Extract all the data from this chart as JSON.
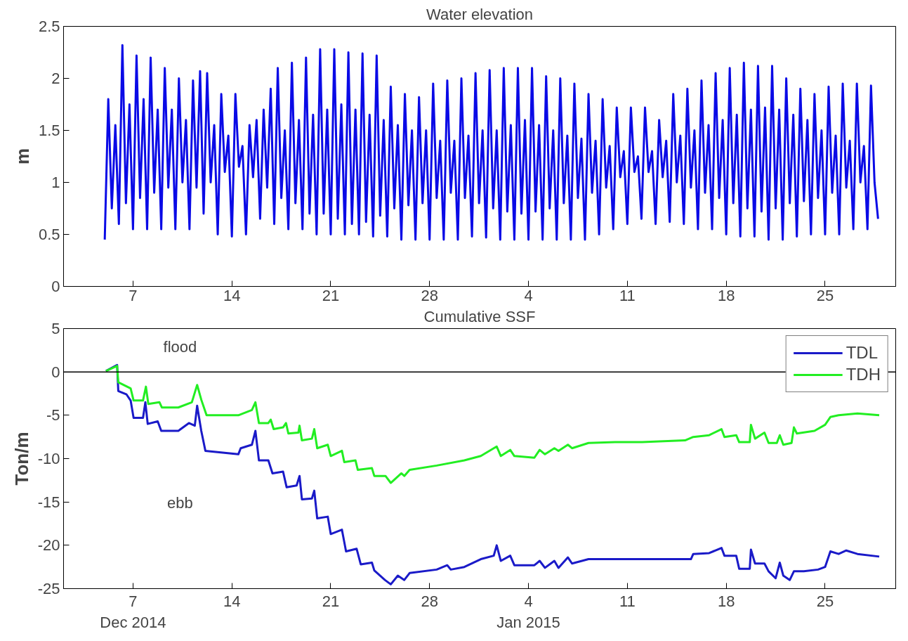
{
  "chart_data": [
    {
      "type": "line",
      "title": "Water elevation",
      "ylabel": "m",
      "xlim": [
        "2014-12-02T02:00",
        "2015-01-30T00:00"
      ],
      "ylim": [
        0,
        2.5
      ],
      "yticks": [
        0,
        0.5,
        1,
        1.5,
        2,
        2.5
      ],
      "xticks": [
        {
          "value": "2014-12-07",
          "label": "7"
        },
        {
          "value": "2014-12-14",
          "label": "14"
        },
        {
          "value": "2014-12-21",
          "label": "21"
        },
        {
          "value": "2014-12-28",
          "label": "28"
        },
        {
          "value": "2015-01-04",
          "label": "4"
        },
        {
          "value": "2015-01-11",
          "label": "11"
        },
        {
          "value": "2015-01-18",
          "label": "18"
        },
        {
          "value": "2015-01-25",
          "label": "25"
        }
      ],
      "grid": false,
      "line_style": "solid",
      "x": [
        "2014-12-05T00:00",
        "2014-12-05T06:00",
        "2014-12-05T12:00",
        "2014-12-05T18:00",
        "2014-12-06T00:00",
        "2014-12-06T06:00",
        "2014-12-06T12:00",
        "2014-12-06T18:00",
        "2014-12-07T00:00",
        "2014-12-07T06:00",
        "2014-12-07T12:00",
        "2014-12-07T18:00",
        "2014-12-08T00:00",
        "2014-12-08T06:00",
        "2014-12-08T12:00",
        "2014-12-08T18:00",
        "2014-12-09T00:00",
        "2014-12-09T06:00",
        "2014-12-09T12:00",
        "2014-12-09T18:00",
        "2014-12-10T00:00",
        "2014-12-10T06:00",
        "2014-12-10T12:00",
        "2014-12-10T18:00",
        "2014-12-11T00:00",
        "2014-12-11T06:00",
        "2014-12-11T12:00",
        "2014-12-11T18:00",
        "2014-12-12T00:00",
        "2014-12-12T06:00",
        "2014-12-12T12:00",
        "2014-12-12T18:00",
        "2014-12-13T00:00",
        "2014-12-13T06:00",
        "2014-12-13T12:00",
        "2014-12-13T18:00",
        "2014-12-14T00:00",
        "2014-12-14T06:00",
        "2014-12-14T12:00",
        "2014-12-14T18:00",
        "2014-12-15T00:00",
        "2014-12-15T06:00",
        "2014-12-15T12:00",
        "2014-12-15T18:00",
        "2014-12-16T00:00",
        "2014-12-16T06:00",
        "2014-12-16T12:00",
        "2014-12-16T18:00",
        "2014-12-17T00:00",
        "2014-12-17T06:00",
        "2014-12-17T12:00",
        "2014-12-17T18:00",
        "2014-12-18T00:00",
        "2014-12-18T06:00",
        "2014-12-18T12:00",
        "2014-12-18T18:00",
        "2014-12-19T00:00",
        "2014-12-19T06:00",
        "2014-12-19T12:00",
        "2014-12-19T18:00",
        "2014-12-20T00:00",
        "2014-12-20T06:00",
        "2014-12-20T12:00",
        "2014-12-20T18:00",
        "2014-12-21T00:00",
        "2014-12-21T06:00",
        "2014-12-21T12:00",
        "2014-12-21T18:00",
        "2014-12-22T00:00",
        "2014-12-22T06:00",
        "2014-12-22T12:00",
        "2014-12-22T18:00",
        "2014-12-23T00:00",
        "2014-12-23T06:00",
        "2014-12-23T12:00",
        "2014-12-23T18:00",
        "2014-12-24T00:00",
        "2014-12-24T06:00",
        "2014-12-24T12:00",
        "2014-12-24T18:00",
        "2014-12-25T00:00",
        "2014-12-25T06:00",
        "2014-12-25T12:00",
        "2014-12-25T18:00",
        "2014-12-26T00:00",
        "2014-12-26T06:00",
        "2014-12-26T12:00",
        "2014-12-26T18:00",
        "2014-12-27T00:00",
        "2014-12-27T06:00",
        "2014-12-27T12:00",
        "2014-12-27T18:00",
        "2014-12-28T00:00",
        "2014-12-28T06:00",
        "2014-12-28T12:00",
        "2014-12-28T18:00",
        "2014-12-29T00:00",
        "2014-12-29T06:00",
        "2014-12-29T12:00",
        "2014-12-29T18:00",
        "2014-12-30T00:00",
        "2014-12-30T06:00",
        "2014-12-30T12:00",
        "2014-12-30T18:00",
        "2014-12-31T00:00",
        "2014-12-31T06:00",
        "2014-12-31T12:00",
        "2014-12-31T18:00",
        "2015-01-01T00:00",
        "2015-01-01T06:00",
        "2015-01-01T12:00",
        "2015-01-01T18:00",
        "2015-01-02T00:00",
        "2015-01-02T06:00",
        "2015-01-02T12:00",
        "2015-01-02T18:00",
        "2015-01-03T00:00",
        "2015-01-03T06:00",
        "2015-01-03T12:00",
        "2015-01-03T18:00",
        "2015-01-04T00:00",
        "2015-01-04T06:00",
        "2015-01-04T12:00",
        "2015-01-04T18:00",
        "2015-01-05T00:00",
        "2015-01-05T06:00",
        "2015-01-05T12:00",
        "2015-01-05T18:00",
        "2015-01-06T00:00",
        "2015-01-06T06:00",
        "2015-01-06T12:00",
        "2015-01-06T18:00",
        "2015-01-07T00:00",
        "2015-01-07T06:00",
        "2015-01-07T12:00",
        "2015-01-07T18:00",
        "2015-01-08T00:00",
        "2015-01-08T06:00",
        "2015-01-08T12:00",
        "2015-01-08T18:00",
        "2015-01-09T00:00",
        "2015-01-09T06:00",
        "2015-01-09T12:00",
        "2015-01-09T18:00",
        "2015-01-10T00:00",
        "2015-01-10T06:00",
        "2015-01-10T12:00",
        "2015-01-10T18:00",
        "2015-01-11T00:00",
        "2015-01-11T06:00",
        "2015-01-11T12:00",
        "2015-01-11T18:00",
        "2015-01-12T00:00",
        "2015-01-12T06:00",
        "2015-01-12T12:00",
        "2015-01-12T18:00",
        "2015-01-13T00:00",
        "2015-01-13T06:00",
        "2015-01-13T12:00",
        "2015-01-13T18:00",
        "2015-01-14T00:00",
        "2015-01-14T06:00",
        "2015-01-14T12:00",
        "2015-01-14T18:00",
        "2015-01-15T00:00",
        "2015-01-15T06:00",
        "2015-01-15T12:00",
        "2015-01-15T18:00",
        "2015-01-16T00:00",
        "2015-01-16T06:00",
        "2015-01-16T12:00",
        "2015-01-16T18:00",
        "2015-01-17T00:00",
        "2015-01-17T06:00",
        "2015-01-17T12:00",
        "2015-01-17T18:00",
        "2015-01-18T00:00",
        "2015-01-18T06:00",
        "2015-01-18T12:00",
        "2015-01-18T18:00",
        "2015-01-19T00:00",
        "2015-01-19T06:00",
        "2015-01-19T12:00",
        "2015-01-19T18:00",
        "2015-01-20T00:00",
        "2015-01-20T06:00",
        "2015-01-20T12:00",
        "2015-01-20T18:00",
        "2015-01-21T00:00",
        "2015-01-21T06:00",
        "2015-01-21T12:00",
        "2015-01-21T18:00",
        "2015-01-22T00:00",
        "2015-01-22T06:00",
        "2015-01-22T12:00",
        "2015-01-22T18:00",
        "2015-01-23T00:00",
        "2015-01-23T06:00",
        "2015-01-23T12:00",
        "2015-01-23T18:00",
        "2015-01-24T00:00",
        "2015-01-24T06:00",
        "2015-01-24T12:00",
        "2015-01-24T18:00",
        "2015-01-25T00:00",
        "2015-01-25T06:00",
        "2015-01-25T12:00",
        "2015-01-25T18:00",
        "2015-01-26T00:00",
        "2015-01-26T06:00",
        "2015-01-26T12:00",
        "2015-01-26T18:00",
        "2015-01-27T00:00",
        "2015-01-27T06:00",
        "2015-01-27T12:00",
        "2015-01-27T18:00",
        "2015-01-28T00:00",
        "2015-01-28T06:00",
        "2015-01-28T12:00",
        "2015-01-28T18:00"
      ],
      "series": [
        {
          "color": "#0a0ae6",
          "values": [
            0.45,
            1.8,
            0.75,
            1.55,
            0.6,
            2.32,
            0.8,
            1.75,
            0.55,
            2.22,
            0.85,
            1.8,
            0.55,
            2.2,
            0.9,
            1.7,
            0.55,
            2.1,
            0.95,
            1.7,
            0.55,
            2.0,
            1.0,
            1.6,
            0.55,
            1.98,
            0.95,
            2.07,
            0.7,
            2.05,
            1.0,
            1.55,
            0.5,
            1.85,
            1.1,
            1.45,
            0.48,
            1.85,
            1.15,
            1.35,
            0.5,
            1.55,
            1.05,
            1.6,
            0.65,
            1.7,
            0.95,
            1.9,
            0.6,
            2.1,
            0.85,
            1.5,
            0.55,
            2.15,
            0.8,
            1.6,
            0.55,
            2.2,
            0.7,
            1.65,
            0.5,
            2.28,
            0.7,
            1.7,
            0.5,
            2.28,
            0.65,
            1.75,
            0.5,
            2.25,
            0.6,
            1.7,
            0.5,
            2.24,
            0.62,
            1.65,
            0.48,
            2.22,
            0.68,
            1.6,
            0.48,
            1.92,
            0.75,
            1.55,
            0.45,
            1.85,
            0.78,
            1.5,
            0.45,
            1.82,
            0.8,
            1.5,
            0.45,
            1.95,
            0.85,
            1.4,
            0.45,
            1.98,
            0.9,
            1.4,
            0.45,
            2.0,
            0.85,
            1.45,
            0.48,
            2.05,
            0.8,
            1.5,
            0.47,
            2.08,
            0.75,
            1.5,
            0.45,
            2.1,
            0.72,
            1.55,
            0.45,
            2.1,
            0.7,
            1.6,
            0.45,
            2.1,
            0.72,
            1.55,
            0.45,
            2.02,
            0.75,
            1.5,
            0.45,
            2.0,
            0.8,
            1.45,
            0.45,
            1.95,
            0.85,
            1.42,
            0.45,
            1.85,
            0.9,
            1.4,
            0.5,
            1.8,
            0.95,
            1.35,
            0.55,
            1.72,
            1.05,
            1.3,
            0.6,
            1.72,
            1.1,
            1.25,
            0.65,
            1.72,
            1.1,
            1.3,
            0.6,
            1.6,
            1.05,
            1.4,
            0.62,
            1.85,
            1.0,
            1.45,
            0.6,
            1.9,
            0.95,
            1.5,
            0.55,
            1.98,
            0.9,
            1.55,
            0.55,
            2.05,
            0.85,
            1.6,
            0.5,
            2.1,
            0.8,
            1.65,
            0.48,
            2.15,
            0.75,
            1.7,
            0.48,
            2.12,
            0.72,
            1.72,
            0.45,
            2.12,
            0.75,
            1.7,
            0.45,
            2.0,
            0.8,
            1.65,
            0.48,
            1.9,
            0.82,
            1.6,
            0.5,
            1.85,
            0.85,
            1.5,
            0.5,
            1.92,
            0.9,
            1.45,
            0.5,
            1.95,
            0.95,
            1.4,
            0.55,
            1.95,
            1.0,
            1.35,
            0.55,
            1.93,
            1.0,
            0.65
          ]
        }
      ]
    },
    {
      "type": "line",
      "title": "Cumulative SSF",
      "ylabel": "Ton/m",
      "xlim": [
        "2014-12-02T02:00",
        "2015-01-30T00:00"
      ],
      "ylim": [
        -25,
        5
      ],
      "yticks": [
        -25,
        -20,
        -15,
        -10,
        -5,
        0,
        5
      ],
      "xticks": [
        {
          "value": "2014-12-07",
          "label": "7\nDec 2014"
        },
        {
          "value": "2014-12-14",
          "label": "14"
        },
        {
          "value": "2014-12-21",
          "label": "21"
        },
        {
          "value": "2014-12-28",
          "label": "28"
        },
        {
          "value": "2015-01-04",
          "label": "4\nJan 2015"
        },
        {
          "value": "2015-01-11",
          "label": "11"
        },
        {
          "value": "2015-01-18",
          "label": "18"
        },
        {
          "value": "2015-01-25",
          "label": "25"
        }
      ],
      "grid": false,
      "legend": "top right",
      "line_style": "solid",
      "ref_lines": [
        {
          "axis": "y",
          "value": 0,
          "color": "#000000"
        }
      ],
      "annotations": [
        "flood",
        "ebb"
      ],
      "series": [
        {
          "name": "TDL",
          "color": "#1a1ac8",
          "x": [
            "2014-12-05T02:00",
            "2014-12-05T21:00",
            "2014-12-05T23:00",
            "2014-12-06T13:00",
            "2014-12-06T20:00",
            "2014-12-07T01:00",
            "2014-12-07T17:00",
            "2014-12-07T21:00",
            "2014-12-08T01:00",
            "2014-12-08T18:00",
            "2014-12-09T00:00",
            "2014-12-10T05:00",
            "2014-12-10T23:00",
            "2014-12-11T09:00",
            "2014-12-11T13:00",
            "2014-12-11T20:00",
            "2014-12-12T03:00",
            "2014-12-14T11:00",
            "2014-12-14T15:00",
            "2014-12-15T10:00",
            "2014-12-15T16:00",
            "2014-12-15T22:00",
            "2014-12-16T14:00",
            "2014-12-16T21:00",
            "2014-12-17T15:00",
            "2014-12-17T21:00",
            "2014-12-18T14:00",
            "2014-12-18T19:00",
            "2014-12-18T23:00",
            "2014-12-19T16:00",
            "2014-12-19T20:00",
            "2014-12-20T01:00",
            "2014-12-20T19:00",
            "2014-12-21T00:00",
            "2014-12-21T19:00",
            "2014-12-22T02:00",
            "2014-12-22T20:00",
            "2014-12-23T03:00",
            "2014-12-23T22:00",
            "2014-12-24T02:00",
            "2014-12-24T20:00",
            "2014-12-25T06:00",
            "2014-12-25T18:00",
            "2014-12-26T05:00",
            "2014-12-26T14:00",
            "2014-12-28T12:00",
            "2014-12-29T06:00",
            "2014-12-29T12:00",
            "2014-12-30T11:00",
            "2014-12-31T15:00",
            "2015-01-01T13:00",
            "2015-01-01T18:00",
            "2015-01-02T01:00",
            "2015-01-02T17:00",
            "2015-01-03T00:00",
            "2015-01-04T10:00",
            "2015-01-04T19:00",
            "2015-01-05T04:00",
            "2015-01-05T20:00",
            "2015-01-06T03:00",
            "2015-01-06T19:00",
            "2015-01-07T02:00",
            "2015-01-08T06:00",
            "2015-01-12T01:00",
            "2015-01-15T12:00",
            "2015-01-15T16:00",
            "2015-01-16T19:00",
            "2015-01-17T16:00",
            "2015-01-17T21:00",
            "2015-01-18T17:00",
            "2015-01-18T22:00",
            "2015-01-19T16:00",
            "2015-01-19T18:00",
            "2015-01-20T01:00",
            "2015-01-20T17:00",
            "2015-01-21T00:00",
            "2015-01-21T12:00",
            "2015-01-21T19:00",
            "2015-01-22T01:00",
            "2015-01-22T12:00",
            "2015-01-22T19:00",
            "2015-01-23T12:00",
            "2015-01-24T12:00",
            "2015-01-25T00:00",
            "2015-01-25T09:00",
            "2015-01-25T23:00",
            "2015-01-26T12:00",
            "2015-01-27T07:00",
            "2015-01-28T20:00"
          ],
          "values": [
            0.1,
            0.8,
            -2.2,
            -2.6,
            -3.3,
            -5.3,
            -5.3,
            -3.5,
            -6.0,
            -5.7,
            -6.8,
            -6.8,
            -5.9,
            -6.2,
            -3.9,
            -6.8,
            -9.1,
            -9.5,
            -8.8,
            -8.4,
            -6.8,
            -10.2,
            -10.2,
            -11.7,
            -11.5,
            -13.3,
            -13.1,
            -12.0,
            -14.7,
            -14.6,
            -13.7,
            -16.9,
            -16.7,
            -18.7,
            -18.2,
            -20.7,
            -20.4,
            -22.2,
            -22.0,
            -22.9,
            -24.0,
            -24.5,
            -23.5,
            -24.0,
            -23.2,
            -22.8,
            -22.3,
            -22.8,
            -22.5,
            -21.6,
            -21.2,
            -20.0,
            -21.8,
            -21.2,
            -22.3,
            -22.3,
            -21.8,
            -22.6,
            -21.8,
            -22.6,
            -21.4,
            -22.1,
            -21.6,
            -21.6,
            -21.6,
            -21.0,
            -20.9,
            -20.3,
            -21.2,
            -21.2,
            -22.7,
            -22.7,
            -20.5,
            -22.1,
            -22.1,
            -23.0,
            -23.8,
            -22.0,
            -23.5,
            -24.0,
            -23.0,
            -23.0,
            -22.8,
            -22.5,
            -20.7,
            -21.0,
            -20.6,
            -21.0,
            -21.3
          ]
        },
        {
          "name": "TDH",
          "color": "#22ee22",
          "x": [
            "2014-12-05T02:00",
            "2014-12-05T21:00",
            "2014-12-05T23:00",
            "2014-12-06T20:00",
            "2014-12-07T01:00",
            "2014-12-07T17:00",
            "2014-12-07T22:00",
            "2014-12-08T02:00",
            "2014-12-08T21:00",
            "2014-12-09T01:00",
            "2014-12-10T05:00",
            "2014-12-11T04:00",
            "2014-12-11T13:00",
            "2014-12-11T20:00",
            "2014-12-12T05:00",
            "2014-12-14T11:00",
            "2014-12-15T10:00",
            "2014-12-15T16:00",
            "2014-12-15T22:00",
            "2014-12-16T14:00",
            "2014-12-16T18:00",
            "2014-12-16T23:00",
            "2014-12-17T15:00",
            "2014-12-17T20:00",
            "2014-12-18T00:00",
            "2014-12-18T17:00",
            "2014-12-18T19:00",
            "2014-12-18T23:00",
            "2014-12-19T16:00",
            "2014-12-19T20:00",
            "2014-12-20T01:00",
            "2014-12-20T19:00",
            "2014-12-21T00:00",
            "2014-12-21T19:00",
            "2014-12-21T23:00",
            "2014-12-22T18:00",
            "2014-12-22T22:00",
            "2014-12-23T22:00",
            "2014-12-24T02:00",
            "2014-12-24T21:00",
            "2014-12-25T06:00",
            "2014-12-26T00:00",
            "2014-12-26T05:00",
            "2014-12-26T14:00",
            "2014-12-28T12:00",
            "2014-12-30T11:00",
            "2014-12-31T15:00",
            "2015-01-01T18:00",
            "2015-01-02T01:00",
            "2015-01-02T17:00",
            "2015-01-03T00:00",
            "2015-01-04T10:00",
            "2015-01-04T19:00",
            "2015-01-05T04:00",
            "2015-01-05T20:00",
            "2015-01-06T03:00",
            "2015-01-06T19:00",
            "2015-01-07T02:00",
            "2015-01-08T06:00",
            "2015-01-10T03:00",
            "2015-01-12T01:00",
            "2015-01-15T02:00",
            "2015-01-15T16:00",
            "2015-01-16T19:00",
            "2015-01-17T16:00",
            "2015-01-17T21:00",
            "2015-01-18T17:00",
            "2015-01-18T22:00",
            "2015-01-19T16:00",
            "2015-01-19T18:00",
            "2015-01-20T01:00",
            "2015-01-20T17:00",
            "2015-01-21T00:00",
            "2015-01-21T14:00",
            "2015-01-21T19:00",
            "2015-01-22T01:00",
            "2015-01-22T15:00",
            "2015-01-22T19:00",
            "2015-01-23T00:00",
            "2015-01-24T06:00",
            "2015-01-25T00:00",
            "2015-01-25T09:00",
            "2015-01-25T23:00",
            "2015-01-27T07:00",
            "2015-01-28T20:00"
          ],
          "values": [
            0.1,
            0.7,
            -1.2,
            -1.9,
            -3.3,
            -3.3,
            -1.7,
            -3.7,
            -3.5,
            -4.1,
            -4.1,
            -3.5,
            -1.5,
            -3.2,
            -5.0,
            -5.0,
            -4.4,
            -3.5,
            -5.9,
            -5.9,
            -5.5,
            -6.6,
            -6.4,
            -5.9,
            -7.1,
            -7.0,
            -6.2,
            -7.9,
            -7.7,
            -6.6,
            -8.8,
            -8.4,
            -9.7,
            -9.1,
            -10.4,
            -10.2,
            -11.3,
            -11.1,
            -12.0,
            -12.0,
            -12.8,
            -11.7,
            -12.0,
            -11.3,
            -10.8,
            -10.2,
            -9.7,
            -8.6,
            -9.7,
            -9.0,
            -9.7,
            -9.9,
            -9.0,
            -9.5,
            -8.8,
            -9.1,
            -8.4,
            -8.8,
            -8.2,
            -8.1,
            -8.1,
            -7.9,
            -7.5,
            -7.3,
            -6.6,
            -7.5,
            -7.3,
            -8.1,
            -8.1,
            -6.1,
            -7.7,
            -7.0,
            -8.2,
            -8.2,
            -7.3,
            -8.4,
            -8.2,
            -6.4,
            -7.1,
            -6.8,
            -6.1,
            -5.2,
            -5.0,
            -4.8,
            -5.0
          ]
        }
      ]
    }
  ]
}
